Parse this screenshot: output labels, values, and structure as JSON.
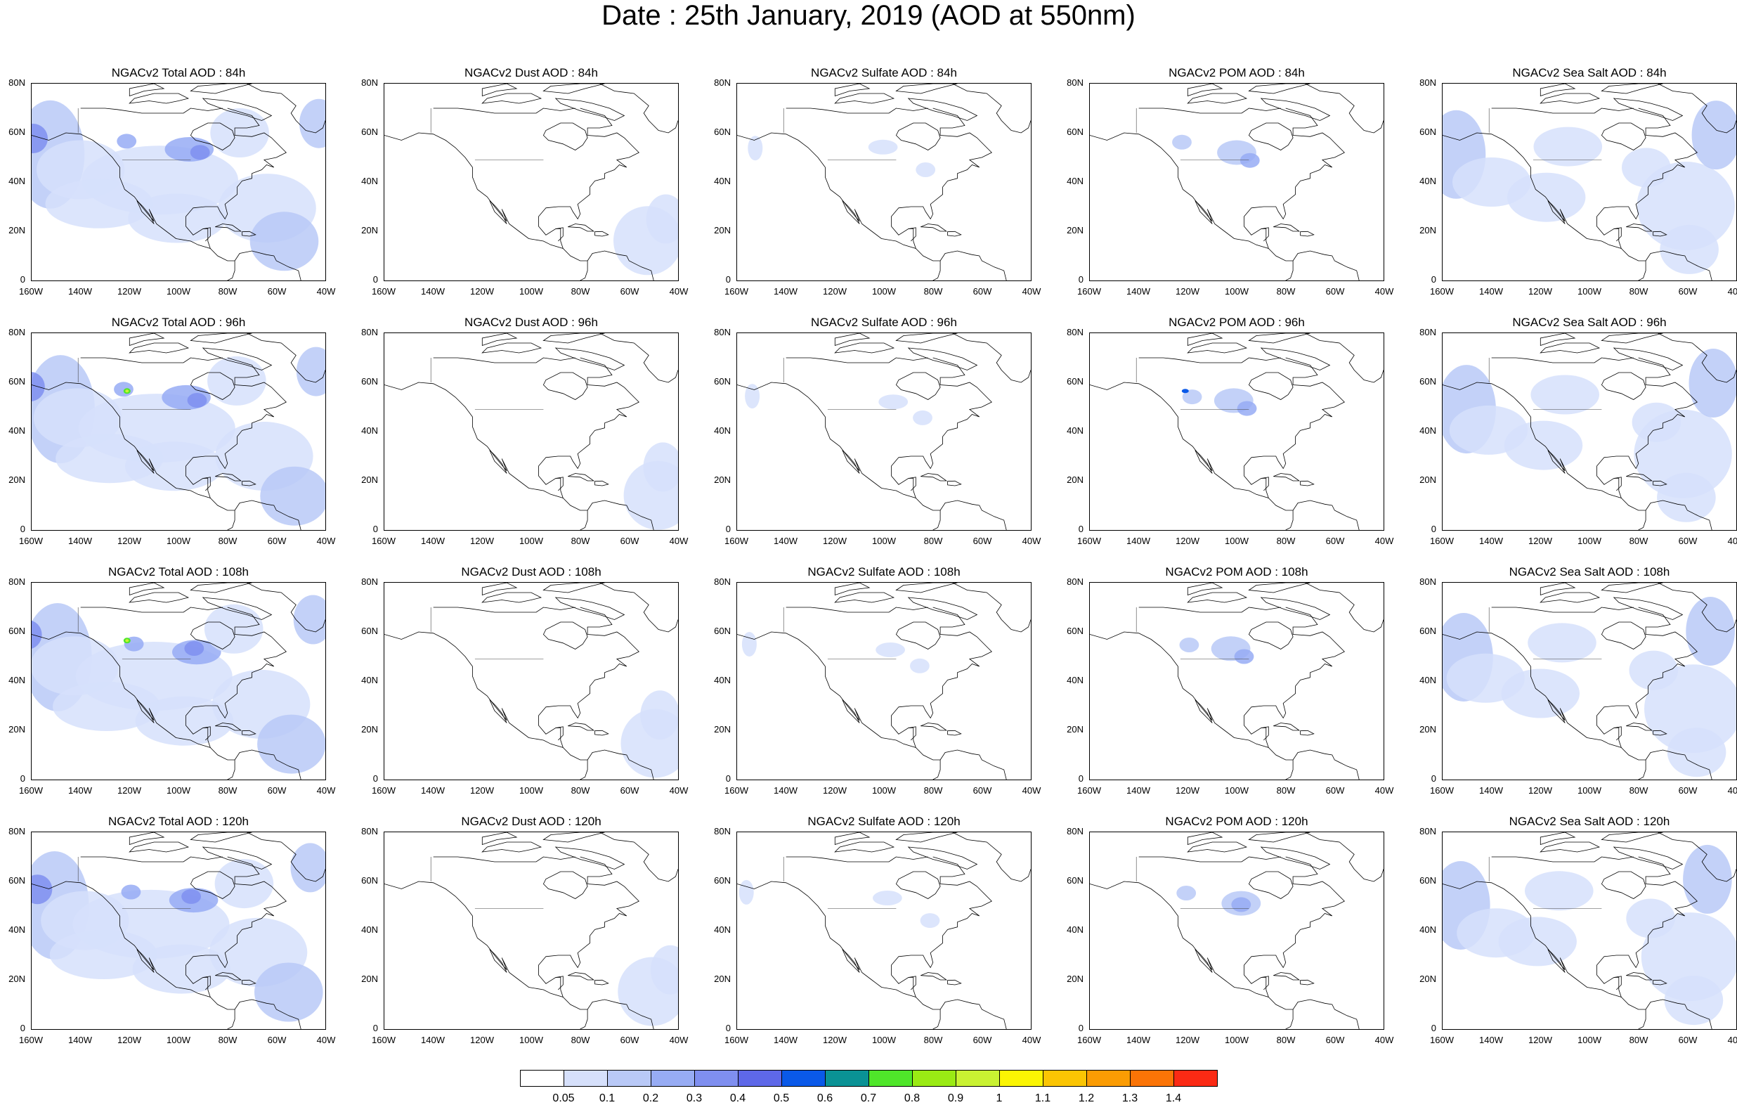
{
  "title": "Date : 25th January, 2019 (AOD at 550nm)",
  "axes": {
    "y_ticks": [
      "80N",
      "60N",
      "40N",
      "20N",
      "0"
    ],
    "x_ticks": [
      "160W",
      "140W",
      "120W",
      "100W",
      "80W",
      "60W",
      "40W"
    ]
  },
  "panels": [
    {
      "title": "NGACv2 Total AOD : 84h",
      "type": "total",
      "lead": 84
    },
    {
      "title": "NGACv2 Dust AOD : 84h",
      "type": "dust",
      "lead": 84
    },
    {
      "title": "NGACv2 Sulfate AOD : 84h",
      "type": "sulfate",
      "lead": 84
    },
    {
      "title": "NGACv2 POM AOD : 84h",
      "type": "pom",
      "lead": 84
    },
    {
      "title": "NGACv2 Sea Salt AOD : 84h",
      "type": "seasalt",
      "lead": 84
    },
    {
      "title": "NGACv2 Total AOD : 96h",
      "type": "total",
      "lead": 96
    },
    {
      "title": "NGACv2 Dust AOD : 96h",
      "type": "dust",
      "lead": 96
    },
    {
      "title": "NGACv2 Sulfate AOD : 96h",
      "type": "sulfate",
      "lead": 96
    },
    {
      "title": "NGACv2 POM AOD : 96h",
      "type": "pom",
      "lead": 96
    },
    {
      "title": "NGACv2 Sea Salt AOD : 96h",
      "type": "seasalt",
      "lead": 96
    },
    {
      "title": "NGACv2 Total AOD : 108h",
      "type": "total",
      "lead": 108
    },
    {
      "title": "NGACv2 Dust AOD : 108h",
      "type": "dust",
      "lead": 108
    },
    {
      "title": "NGACv2 Sulfate AOD : 108h",
      "type": "sulfate",
      "lead": 108
    },
    {
      "title": "NGACv2 POM AOD : 108h",
      "type": "pom",
      "lead": 108
    },
    {
      "title": "NGACv2 Sea Salt AOD : 108h",
      "type": "seasalt",
      "lead": 108
    },
    {
      "title": "NGACv2 Total AOD : 120h",
      "type": "total",
      "lead": 120
    },
    {
      "title": "NGACv2 Dust AOD : 120h",
      "type": "dust",
      "lead": 120
    },
    {
      "title": "NGACv2 Sulfate AOD : 120h",
      "type": "sulfate",
      "lead": 120
    },
    {
      "title": "NGACv2 POM AOD : 120h",
      "type": "pom",
      "lead": 120
    },
    {
      "title": "NGACv2 Sea Salt  AOD : 120h",
      "type": "seasalt",
      "lead": 120
    }
  ],
  "colorbar": {
    "labels": [
      "0.05",
      "0.1",
      "0.2",
      "0.3",
      "0.4",
      "0.5",
      "0.6",
      "0.7",
      "0.8",
      "0.9",
      "1",
      "1.1",
      "1.2",
      "1.3",
      "1.4"
    ],
    "colors": [
      "#ffffff",
      "#d6e0fb",
      "#b9c9f7",
      "#97acf4",
      "#7f8ff0",
      "#5e68e8",
      "#0a59e8",
      "#0a9295",
      "#4fe62a",
      "#9aea14",
      "#c9f232",
      "#fbf503",
      "#fbc503",
      "#fb9c03",
      "#fb7406",
      "#fb2a14"
    ]
  }
}
